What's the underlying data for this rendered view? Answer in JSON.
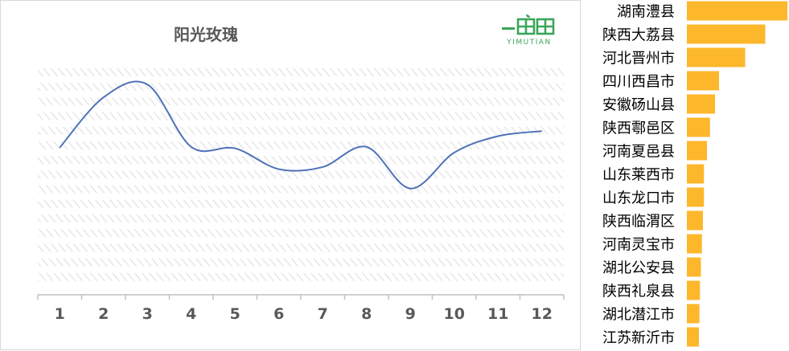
{
  "colors": {
    "line": "#4e72b8",
    "bar": "#fdb72b",
    "hatch": "#e3e3e3",
    "axis": "#bfbfbf",
    "text": "#404040"
  },
  "logo": {
    "text": "YIMUTIAN",
    "icon": "yimutian-logo-icon"
  },
  "chart_data": [
    {
      "type": "line",
      "title": "阳光玫瑰",
      "x": [
        "1",
        "2",
        "3",
        "4",
        "5",
        "6",
        "7",
        "8",
        "9",
        "10",
        "11",
        "12"
      ],
      "series": [
        {
          "values": [
            20.5,
            27.5,
            29.3,
            20.6,
            20.4,
            17.5,
            17.8,
            20.6,
            14.8,
            19.8,
            22.1,
            22.8
          ]
        }
      ],
      "ylim": [
        0,
        32
      ],
      "xlabel": "",
      "ylabel": "",
      "grid": "hatched background",
      "legend": "none"
    },
    {
      "type": "bar",
      "orientation": "horizontal",
      "categories": [
        "湖南澧县",
        "陕西大荔县",
        "河北晋州市",
        "四川西昌市",
        "安徽砀山县",
        "陕西鄠邑区",
        "河南夏邑县",
        "山东莱西市",
        "山东龙口市",
        "陕西临渭区",
        "河南灵宝市",
        "湖北公安县",
        "陕西礼泉县",
        "湖北潜江市",
        "江苏新沂市"
      ],
      "values": [
        100,
        78,
        58,
        32,
        28,
        23,
        20,
        17,
        17,
        16,
        15,
        14,
        13,
        12.5,
        12
      ],
      "xlim": [
        0,
        100
      ],
      "title": "",
      "xlabel": "",
      "ylabel": "",
      "legend": "none"
    }
  ]
}
